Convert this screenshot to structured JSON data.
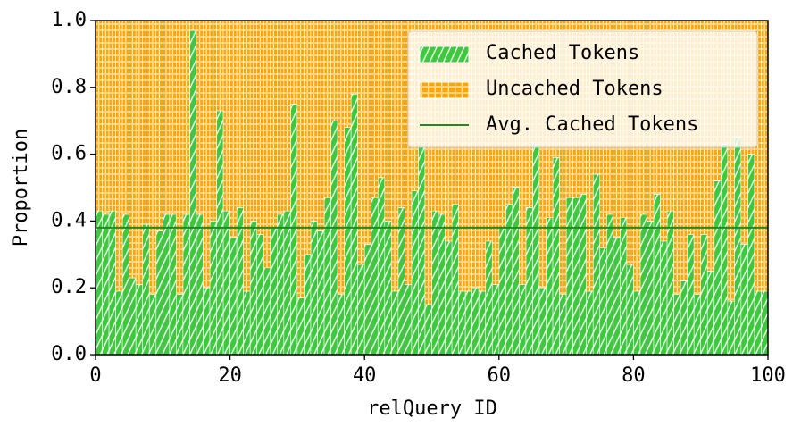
{
  "chart_data": {
    "type": "stacked-bar",
    "xlabel": "relQuery ID",
    "ylabel": "Proportion",
    "xlim": [
      0,
      100
    ],
    "xticks": [
      0,
      20,
      40,
      60,
      80,
      100
    ],
    "ylim": [
      0,
      1
    ],
    "yticks": [
      {
        "value": 0,
        "label": "0.0"
      },
      0.2,
      0.4,
      0.6,
      0.8,
      {
        "value": 1,
        "label": "1.0"
      }
    ],
    "legend": "upper right",
    "series": [
      {
        "name": "Cached Tokens",
        "color": "#3ec83e",
        "values": [
          0.43,
          0.42,
          0.43,
          0.19,
          0.42,
          0.23,
          0.21,
          0.39,
          0.18,
          0.37,
          0.42,
          0.42,
          0.18,
          0.42,
          0.97,
          0.42,
          0.2,
          0.4,
          0.73,
          0.43,
          0.35,
          0.44,
          0.19,
          0.4,
          0.36,
          0.26,
          0.38,
          0.42,
          0.43,
          0.75,
          0.17,
          0.3,
          0.4,
          0.37,
          0.47,
          0.7,
          0.18,
          0.68,
          0.78,
          0.27,
          0.33,
          0.47,
          0.53,
          0.4,
          0.19,
          0.44,
          0.21,
          0.49,
          0.62,
          0.15,
          0.43,
          0.42,
          0.34,
          0.45,
          0.19,
          0.19,
          0.2,
          0.19,
          0.34,
          0.21,
          0.38,
          0.45,
          0.5,
          0.21,
          0.44,
          0.63,
          0.2,
          0.41,
          0.59,
          0.18,
          0.47,
          0.47,
          0.48,
          0.19,
          0.54,
          0.32,
          0.42,
          0.35,
          0.41,
          0.27,
          0.19,
          0.42,
          0.4,
          0.48,
          0.34,
          0.43,
          0.18,
          0.22,
          0.36,
          0.18,
          0.36,
          0.25,
          0.52,
          0.63,
          0.16,
          0.65,
          0.33,
          0.6,
          0.19,
          0.19
        ]
      },
      {
        "name": "Uncached Tokens",
        "color": "#ffa500",
        "values": [
          0.57,
          0.58,
          0.57,
          0.81,
          0.58,
          0.77,
          0.79,
          0.61,
          0.82,
          0.63,
          0.58,
          0.58,
          0.82,
          0.58,
          0.03,
          0.58,
          0.8,
          0.6,
          0.27,
          0.57,
          0.65,
          0.56,
          0.81,
          0.6,
          0.64,
          0.74,
          0.62,
          0.58,
          0.57,
          0.25,
          0.83,
          0.7,
          0.6,
          0.63,
          0.53,
          0.3,
          0.82,
          0.32,
          0.22,
          0.73,
          0.67,
          0.53,
          0.47,
          0.6,
          0.81,
          0.56,
          0.79,
          0.51,
          0.38,
          0.85,
          0.57,
          0.58,
          0.66,
          0.55,
          0.81,
          0.81,
          0.8,
          0.81,
          0.66,
          0.79,
          0.62,
          0.55,
          0.5,
          0.79,
          0.56,
          0.37,
          0.8,
          0.59,
          0.41,
          0.82,
          0.53,
          0.53,
          0.52,
          0.81,
          0.46,
          0.68,
          0.58,
          0.65,
          0.59,
          0.73,
          0.81,
          0.58,
          0.6,
          0.52,
          0.66,
          0.57,
          0.82,
          0.78,
          0.64,
          0.82,
          0.64,
          0.75,
          0.48,
          0.37,
          0.84,
          0.35,
          0.67,
          0.4,
          0.81,
          0.81
        ]
      },
      {
        "name": "Avg. Cached Tokens",
        "color": "#1f8a1f",
        "value": 0.38
      }
    ]
  }
}
